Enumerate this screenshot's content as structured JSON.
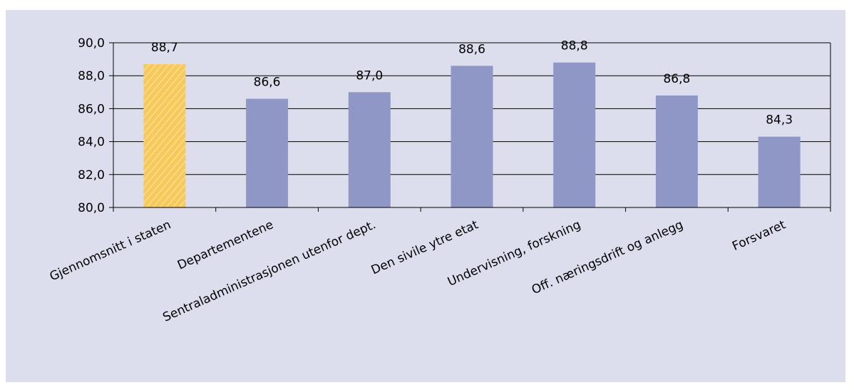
{
  "chart_data": {
    "type": "bar",
    "title": "",
    "xlabel": "",
    "ylabel": "",
    "ylim": [
      80,
      90
    ],
    "yticks": [
      "80,0",
      "82,0",
      "84,0",
      "86,0",
      "88,0",
      "90,0"
    ],
    "ytick_values": [
      80,
      82,
      84,
      86,
      88,
      90
    ],
    "grid": true,
    "legend": "none",
    "categories": [
      "Gjennomsnitt i staten",
      "Departementene",
      "Sentraladministrasjonen utenfor dept.",
      "Den sivile ytre etat",
      "Undervisning, forskning",
      "Off. næringsdrift og anlegg",
      "Forsvaret"
    ],
    "values": [
      88.7,
      86.6,
      87.0,
      88.6,
      88.8,
      86.8,
      84.3
    ],
    "value_labels": [
      "88,7",
      "86,6",
      "87,0",
      "88,6",
      "88,8",
      "86,8",
      "84,3"
    ],
    "highlight_index": 0,
    "colors": {
      "bar": "#8e97c5",
      "highlight": "#f7c95c",
      "highlight_stroke": "#fbe6a8",
      "background": "#dcdeee",
      "grid": "#000000",
      "axis": "#000000"
    }
  }
}
